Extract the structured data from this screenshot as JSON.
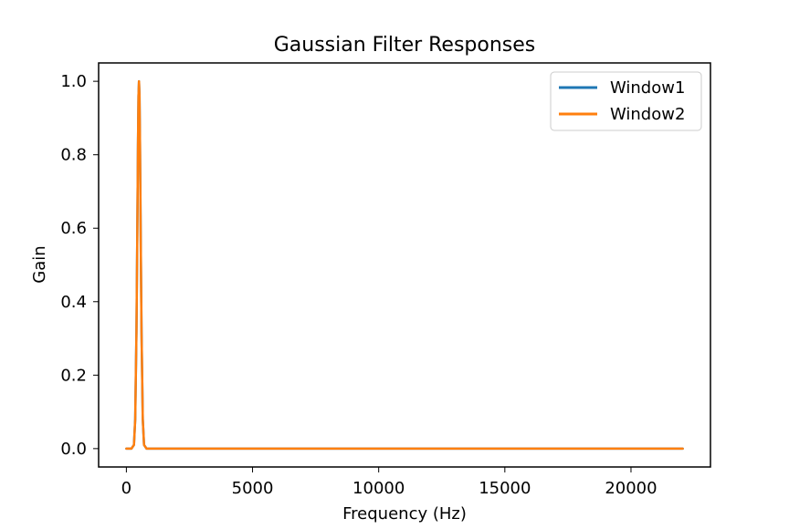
{
  "chart_data": {
    "type": "line",
    "title": "Gaussian Filter Responses",
    "xlabel": "Frequency (Hz)",
    "ylabel": "Gain",
    "xlim": [
      -1100,
      23150
    ],
    "ylim": [
      -0.05,
      1.05
    ],
    "xticks": [
      0,
      5000,
      10000,
      15000,
      20000
    ],
    "yticks": [
      0.0,
      0.2,
      0.4,
      0.6,
      0.8,
      1.0
    ],
    "xtick_labels": [
      "0",
      "5000",
      "10000",
      "15000",
      "20000"
    ],
    "ytick_labels": [
      "0.0",
      "0.2",
      "0.4",
      "0.6",
      "0.8",
      "1.0"
    ],
    "grid": false,
    "legend_position": "upper right",
    "series": [
      {
        "name": "Window1",
        "color": "#1f77b4",
        "x": [
          0,
          200,
          300,
          350,
          400,
          430,
          460,
          480,
          500,
          520,
          540,
          570,
          600,
          650,
          700,
          800,
          1000,
          5000,
          10000,
          15000,
          20000,
          22050
        ],
        "y": [
          0.0,
          0.0,
          0.01,
          0.08,
          0.32,
          0.56,
          0.83,
          0.96,
          1.0,
          0.96,
          0.83,
          0.56,
          0.32,
          0.08,
          0.01,
          0.0,
          0.0,
          0.0,
          0.0,
          0.0,
          0.0,
          0.0
        ]
      },
      {
        "name": "Window2",
        "color": "#ff7f0e",
        "x": [
          0,
          200,
          300,
          350,
          400,
          430,
          460,
          480,
          500,
          520,
          540,
          570,
          600,
          650,
          700,
          800,
          1000,
          5000,
          10000,
          15000,
          20000,
          22050
        ],
        "y": [
          0.0,
          0.0,
          0.01,
          0.08,
          0.32,
          0.56,
          0.83,
          0.96,
          1.0,
          0.96,
          0.83,
          0.56,
          0.32,
          0.08,
          0.01,
          0.0,
          0.0,
          0.0,
          0.0,
          0.0,
          0.0,
          0.0
        ]
      }
    ]
  }
}
